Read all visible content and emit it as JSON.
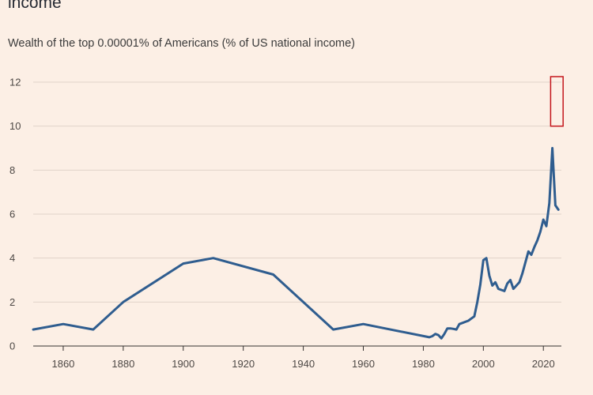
{
  "title": "income",
  "subtitle": "Wealth of the top 0.00001% of Americans (% of US national income)",
  "colors": {
    "background": "#fcefe5",
    "line": "#2f5d8f",
    "highlight": "#c4161c",
    "grid": "#e0d3c9"
  },
  "chart_data": {
    "type": "line",
    "title": "",
    "xlabel": "",
    "ylabel": "",
    "xlim": [
      1850,
      2026
    ],
    "ylim": [
      0,
      12
    ],
    "yticks": [
      0,
      2,
      4,
      6,
      8,
      10,
      12
    ],
    "xticks": [
      1860,
      1880,
      1900,
      1920,
      1940,
      1960,
      1980,
      2000,
      2020
    ],
    "grid": "horizontal",
    "series": [
      {
        "x": [
          1850,
          1860,
          1870,
          1880,
          1900,
          1910,
          1930,
          1950,
          1960,
          1982,
          1983,
          1984,
          1985,
          1986,
          1987,
          1988,
          1989,
          1990,
          1991,
          1992,
          1993,
          1994,
          1995,
          1996,
          1997,
          1998,
          1999,
          2000,
          2001,
          2002,
          2003,
          2004,
          2005,
          2006,
          2007,
          2008,
          2009,
          2010,
          2011,
          2012,
          2013,
          2014,
          2015,
          2016,
          2017,
          2018,
          2019,
          2020,
          2021,
          2022,
          2023,
          2024,
          2025
        ],
        "y": [
          0.75,
          1.0,
          0.75,
          2.0,
          3.75,
          4.0,
          3.25,
          0.75,
          1.0,
          0.4,
          0.45,
          0.55,
          0.5,
          0.35,
          0.55,
          0.8,
          0.8,
          0.78,
          0.75,
          1.0,
          1.05,
          1.1,
          1.15,
          1.25,
          1.35,
          2.0,
          2.8,
          3.9,
          4.0,
          3.2,
          2.75,
          2.9,
          2.6,
          2.55,
          2.5,
          2.85,
          3.0,
          2.6,
          2.75,
          2.9,
          3.3,
          3.8,
          4.3,
          4.15,
          4.5,
          4.8,
          5.2,
          5.75,
          5.45,
          6.5,
          9.0,
          6.4,
          6.2
        ]
      }
    ],
    "highlight": {
      "x_range": [
        2024,
        2025
      ],
      "y_range": [
        10,
        12
      ]
    }
  }
}
